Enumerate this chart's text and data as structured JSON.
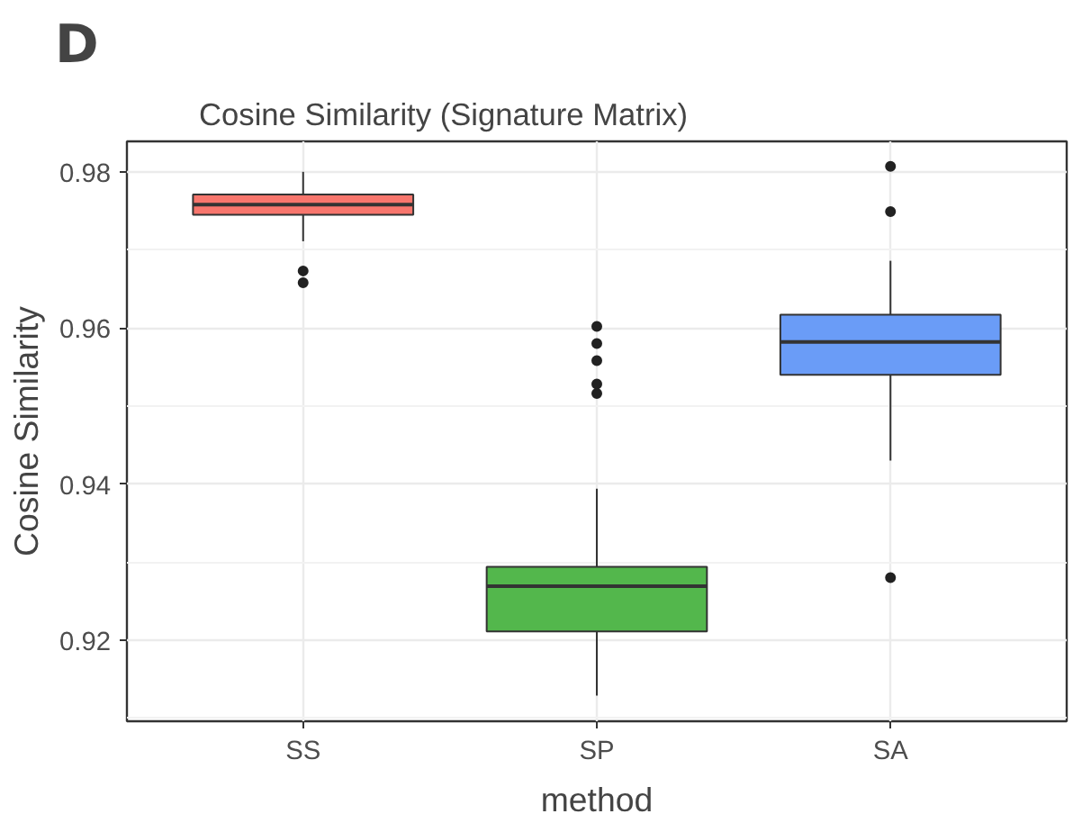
{
  "chart_data": {
    "type": "box",
    "title": "Cosine Similarity (Signature Matrix)",
    "annotations": [
      "D"
    ],
    "xlabel": "method",
    "ylabel": "Cosine Similarity",
    "categories": [
      "SS",
      "SP",
      "SA"
    ],
    "colors": [
      "#f8766d",
      "#53b74c",
      "#6a9cf7"
    ],
    "boxes": [
      {
        "low": 0.9711,
        "q1": 0.9745,
        "median": 0.9758,
        "q3": 0.9771,
        "high": 0.98,
        "outliers": [
          0.9673,
          0.9658
        ]
      },
      {
        "low": 0.9129,
        "q1": 0.9211,
        "median": 0.9269,
        "q3": 0.9294,
        "high": 0.9394,
        "outliers": [
          0.9602,
          0.958,
          0.9558,
          0.9528,
          0.9516
        ]
      },
      {
        "low": 0.943,
        "q1": 0.954,
        "median": 0.9582,
        "q3": 0.9617,
        "high": 0.9686,
        "outliers": [
          0.9807,
          0.9749,
          0.928
        ]
      }
    ],
    "ylim": [
      0.9096,
      0.9839
    ],
    "yticks": [
      0.92,
      0.94,
      0.96,
      0.98
    ],
    "grid": true
  }
}
